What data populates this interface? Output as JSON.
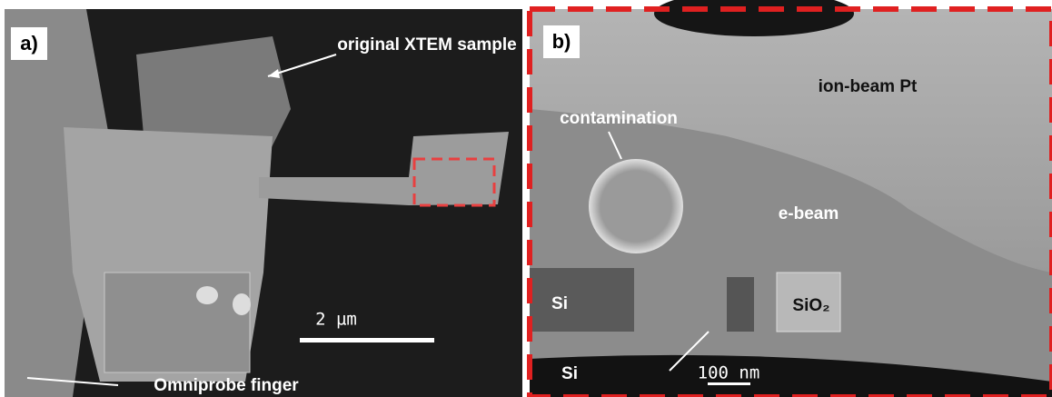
{
  "panel_a": {
    "tag": "a)",
    "annotations": [
      "original XTEM sample",
      "Omniprobe finger"
    ],
    "scale_bar": "2 µm"
  },
  "panel_b": {
    "tag": "b)",
    "annotations": [
      "ion-beam Pt",
      "contamination",
      "e-beam",
      "Si",
      "SiO₂",
      "Si"
    ],
    "scale_bar": "100 nm"
  }
}
